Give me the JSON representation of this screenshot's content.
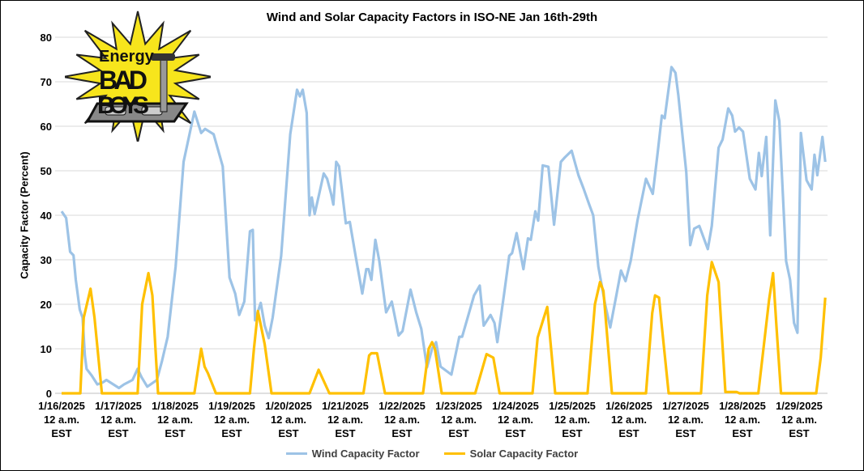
{
  "chart_data": {
    "type": "line",
    "title": "Wind and Solar Capacity Factors in ISO-NE Jan 16th-29th",
    "xlabel": "",
    "ylabel": "Capacity Factor (Percent)",
    "x_units": "days since 1/16/2025 12 a.m. EST",
    "xlim": [
      0,
      13.5
    ],
    "ylim": [
      0,
      80
    ],
    "yticks": [
      0,
      10,
      20,
      30,
      40,
      50,
      60,
      70,
      80
    ],
    "grid": "horizontal",
    "legend_position": "bottom",
    "xtick_labels": [
      [
        "1/16/2025",
        "12 a.m.",
        "EST"
      ],
      [
        "1/17/2025",
        "12 a.m.",
        "EST"
      ],
      [
        "1/18/2025",
        "12 a.m.",
        "EST"
      ],
      [
        "1/19/2025",
        "12 a.m.",
        "EST"
      ],
      [
        "1/20/2025",
        "12 a.m.",
        "EST"
      ],
      [
        "1/21/2025",
        "12 a.m.",
        "EST"
      ],
      [
        "1/22/2025",
        "12 a.m.",
        "EST"
      ],
      [
        "1/23/2025",
        "12 a.m.",
        "EST"
      ],
      [
        "1/24/2025",
        "12 a.m.",
        "EST"
      ],
      [
        "1/25/2025",
        "12 a.m.",
        "EST"
      ],
      [
        "1/26/2025",
        "12 a.m.",
        "EST"
      ],
      [
        "1/27/2025",
        "12 a.m.",
        "EST"
      ],
      [
        "1/28/2025",
        "12 a.m.",
        "EST"
      ],
      [
        "1/29/2025",
        "12 a.m.",
        "EST"
      ]
    ],
    "series": [
      {
        "name": "Wind Capacity Factor",
        "color": "#9dc3e6",
        "points": [
          [
            0,
            40.9
          ],
          [
            0.08,
            39.4
          ],
          [
            0.15,
            31.8
          ],
          [
            0.21,
            31
          ],
          [
            0.25,
            25.5
          ],
          [
            0.32,
            18.8
          ],
          [
            0.37,
            17
          ],
          [
            0.41,
            8.5
          ],
          [
            0.44,
            5.5
          ],
          [
            0.53,
            4
          ],
          [
            0.63,
            2
          ],
          [
            0.72,
            2.4
          ],
          [
            0.79,
            3
          ],
          [
            1.01,
            1.2
          ],
          [
            1.1,
            2
          ],
          [
            1.25,
            3
          ],
          [
            1.34,
            5.5
          ],
          [
            1.41,
            3.6
          ],
          [
            1.51,
            1.5
          ],
          [
            1.68,
            3
          ],
          [
            1.77,
            7.3
          ],
          [
            1.87,
            12.7
          ],
          [
            2.01,
            28.5
          ],
          [
            2.15,
            52
          ],
          [
            2.34,
            63.3
          ],
          [
            2.46,
            58.5
          ],
          [
            2.53,
            59.4
          ],
          [
            2.68,
            58.2
          ],
          [
            2.84,
            51
          ],
          [
            2.96,
            26
          ],
          [
            3.06,
            22.4
          ],
          [
            3.13,
            17.6
          ],
          [
            3.22,
            20.6
          ],
          [
            3.32,
            36.4
          ],
          [
            3.37,
            36.7
          ],
          [
            3.41,
            16.4
          ],
          [
            3.51,
            20.3
          ],
          [
            3.58,
            15.2
          ],
          [
            3.65,
            12.4
          ],
          [
            3.72,
            17
          ],
          [
            3.87,
            30.9
          ],
          [
            4.03,
            58.2
          ],
          [
            4.15,
            68.2
          ],
          [
            4.2,
            66.7
          ],
          [
            4.25,
            68.2
          ],
          [
            4.32,
            63
          ],
          [
            4.37,
            40
          ],
          [
            4.41,
            44
          ],
          [
            4.46,
            40.3
          ],
          [
            4.53,
            44.2
          ],
          [
            4.62,
            49.4
          ],
          [
            4.68,
            48.2
          ],
          [
            4.75,
            44.8
          ],
          [
            4.79,
            42.4
          ],
          [
            4.84,
            52
          ],
          [
            4.89,
            51
          ],
          [
            5.01,
            38.2
          ],
          [
            5.08,
            38.5
          ],
          [
            5.18,
            31
          ],
          [
            5.3,
            22.4
          ],
          [
            5.37,
            27.9
          ],
          [
            5.41,
            27.9
          ],
          [
            5.46,
            25.5
          ],
          [
            5.53,
            34.5
          ],
          [
            5.6,
            29.7
          ],
          [
            5.72,
            18.2
          ],
          [
            5.82,
            20.6
          ],
          [
            5.94,
            13
          ],
          [
            6.01,
            14
          ],
          [
            6.15,
            23.3
          ],
          [
            6.25,
            18.2
          ],
          [
            6.34,
            14.5
          ],
          [
            6.44,
            5.8
          ],
          [
            6.53,
            10
          ],
          [
            6.6,
            11.5
          ],
          [
            6.68,
            6
          ],
          [
            6.87,
            4.2
          ],
          [
            7.01,
            12.7
          ],
          [
            7.06,
            12.7
          ],
          [
            7.27,
            22
          ],
          [
            7.37,
            24.2
          ],
          [
            7.44,
            15.2
          ],
          [
            7.56,
            17.6
          ],
          [
            7.63,
            15.8
          ],
          [
            7.68,
            11.5
          ],
          [
            7.8,
            22.4
          ],
          [
            7.89,
            30.9
          ],
          [
            7.94,
            31.5
          ],
          [
            8.02,
            36
          ],
          [
            8.14,
            27.9
          ],
          [
            8.22,
            34.8
          ],
          [
            8.27,
            34.5
          ],
          [
            8.35,
            40.9
          ],
          [
            8.4,
            38.8
          ],
          [
            8.48,
            51.2
          ],
          [
            8.58,
            50.9
          ],
          [
            8.68,
            37.9
          ],
          [
            8.8,
            52
          ],
          [
            8.87,
            53
          ],
          [
            8.99,
            54.5
          ],
          [
            9.11,
            49
          ],
          [
            9.2,
            46
          ],
          [
            9.3,
            42.4
          ],
          [
            9.37,
            40
          ],
          [
            9.46,
            28.5
          ],
          [
            9.58,
            20
          ],
          [
            9.67,
            14.8
          ],
          [
            9.77,
            21.5
          ],
          [
            9.86,
            27.6
          ],
          [
            9.94,
            25.2
          ],
          [
            10.03,
            29.7
          ],
          [
            10.15,
            38.8
          ],
          [
            10.3,
            48.2
          ],
          [
            10.42,
            44.8
          ],
          [
            10.51,
            54.5
          ],
          [
            10.58,
            62.4
          ],
          [
            10.63,
            61.8
          ],
          [
            10.75,
            73.3
          ],
          [
            10.82,
            72
          ],
          [
            10.87,
            67
          ],
          [
            11.01,
            49.7
          ],
          [
            11.08,
            33.3
          ],
          [
            11.15,
            37
          ],
          [
            11.24,
            37.6
          ],
          [
            11.39,
            32.4
          ],
          [
            11.46,
            37.6
          ],
          [
            11.58,
            55.2
          ],
          [
            11.65,
            57
          ],
          [
            11.75,
            64
          ],
          [
            11.82,
            62.4
          ],
          [
            11.87,
            58.8
          ],
          [
            11.94,
            59.7
          ],
          [
            12.01,
            58.8
          ],
          [
            12.13,
            48.2
          ],
          [
            12.23,
            45.8
          ],
          [
            12.29,
            54
          ],
          [
            12.34,
            48.8
          ],
          [
            12.42,
            57.6
          ],
          [
            12.49,
            35.5
          ],
          [
            12.58,
            65.8
          ],
          [
            12.65,
            61.2
          ],
          [
            12.77,
            29.7
          ],
          [
            12.84,
            25.5
          ],
          [
            12.91,
            15.8
          ],
          [
            12.97,
            13.6
          ],
          [
            13.03,
            58.5
          ],
          [
            13.13,
            47.9
          ],
          [
            13.22,
            45.8
          ],
          [
            13.27,
            53.6
          ],
          [
            13.32,
            49
          ],
          [
            13.41,
            57.6
          ],
          [
            13.46,
            52
          ]
        ]
      },
      {
        "name": "Solar Capacity Factor",
        "color": "#ffc000",
        "points": [
          [
            0,
            0
          ],
          [
            0.33,
            0
          ],
          [
            0.39,
            17
          ],
          [
            0.51,
            23.5
          ],
          [
            0.58,
            17
          ],
          [
            0.71,
            0
          ],
          [
            1.34,
            0
          ],
          [
            1.42,
            20
          ],
          [
            1.53,
            27
          ],
          [
            1.6,
            22
          ],
          [
            1.7,
            0
          ],
          [
            2.34,
            0
          ],
          [
            2.46,
            10
          ],
          [
            2.52,
            6
          ],
          [
            2.58,
            4.5
          ],
          [
            2.72,
            0
          ],
          [
            3.32,
            0
          ],
          [
            3.39,
            10
          ],
          [
            3.46,
            18.5
          ],
          [
            3.58,
            11
          ],
          [
            3.7,
            0
          ],
          [
            4.37,
            0
          ],
          [
            4.53,
            5.3
          ],
          [
            4.72,
            0
          ],
          [
            5.32,
            0
          ],
          [
            5.42,
            8.5
          ],
          [
            5.46,
            9
          ],
          [
            5.56,
            9
          ],
          [
            5.7,
            0
          ],
          [
            6.37,
            0
          ],
          [
            6.47,
            10
          ],
          [
            6.53,
            11.5
          ],
          [
            6.58,
            10
          ],
          [
            6.7,
            0
          ],
          [
            7.29,
            0
          ],
          [
            7.49,
            8.8
          ],
          [
            7.61,
            8
          ],
          [
            7.72,
            0
          ],
          [
            8.3,
            0
          ],
          [
            8.39,
            12.5
          ],
          [
            8.5,
            17
          ],
          [
            8.56,
            19.4
          ],
          [
            8.7,
            0
          ],
          [
            9.27,
            0
          ],
          [
            9.4,
            20
          ],
          [
            9.49,
            25
          ],
          [
            9.55,
            23
          ],
          [
            9.7,
            0
          ],
          [
            10.3,
            0
          ],
          [
            10.41,
            18
          ],
          [
            10.46,
            22
          ],
          [
            10.53,
            21.5
          ],
          [
            10.58,
            15
          ],
          [
            10.7,
            0
          ],
          [
            11.27,
            0
          ],
          [
            11.38,
            22
          ],
          [
            11.46,
            29.5
          ],
          [
            11.58,
            25
          ],
          [
            11.7,
            0.3
          ],
          [
            11.9,
            0.3
          ],
          [
            11.95,
            0
          ],
          [
            12.28,
            0
          ],
          [
            12.47,
            21
          ],
          [
            12.54,
            27
          ],
          [
            12.6,
            15
          ],
          [
            12.68,
            0
          ],
          [
            13.3,
            0
          ],
          [
            13.38,
            8
          ],
          [
            13.46,
            21.5
          ]
        ]
      }
    ]
  },
  "logo": {
    "line1": "Energy",
    "line2": "BAD",
    "line3": "BOYS"
  }
}
